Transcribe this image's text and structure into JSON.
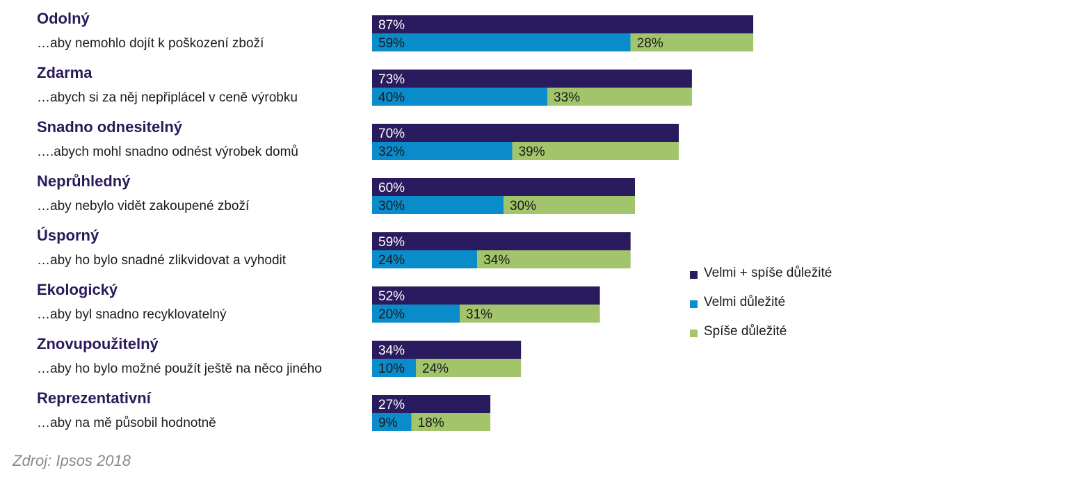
{
  "chart_data": {
    "type": "bar",
    "orientation": "horizontal",
    "categories": [
      {
        "title": "Odolný",
        "subtitle": "…aby nemohlo dojít k poškození zboží"
      },
      {
        "title": "Zdarma",
        "subtitle": "…abych si za něj nepřiplácel v ceně výrobku"
      },
      {
        "title": "Snadno odnesitelný",
        "subtitle": "….abych mohl snadno odnést výrobek domů"
      },
      {
        "title": "Neprůhledný",
        "subtitle": "…aby nebylo vidět zakoupené zboží"
      },
      {
        "title": "Úsporný",
        "subtitle": "…aby ho bylo snadné zlikvidovat a vyhodit"
      },
      {
        "title": "Ekologický",
        "subtitle": "…aby byl snadno recyklovatelný"
      },
      {
        "title": "Znovupoužitelný",
        "subtitle": "…aby ho bylo možné použít ještě na něco jiného"
      },
      {
        "title": "Reprezentativní",
        "subtitle": "…aby na mě působil hodnotně"
      }
    ],
    "series": [
      {
        "name": "Velmi + spíše důležité",
        "color": "#2a1a5e",
        "values": [
          87,
          73,
          70,
          60,
          59,
          52,
          34,
          27
        ],
        "labels": [
          "87%",
          "73%",
          "70%",
          "60%",
          "59%",
          "52%",
          "34%",
          "27%"
        ]
      },
      {
        "name": "Velmi důležité",
        "color": "#0a8ccb",
        "values": [
          59,
          40,
          32,
          30,
          24,
          20,
          10,
          9
        ],
        "labels": [
          "59%",
          "40%",
          "32%",
          "30%",
          "24%",
          "20%",
          "10%",
          "9%"
        ]
      },
      {
        "name": "Spíše důležité",
        "color": "#a2c46b",
        "values": [
          28,
          33,
          39,
          30,
          34,
          31,
          24,
          18
        ],
        "labels": [
          "28%",
          "33%",
          "39%",
          "30%",
          "34%",
          "31%",
          "24%",
          "18%"
        ]
      }
    ],
    "value_unit": "%",
    "xlim": [
      0,
      100
    ],
    "grid": false,
    "legend_position": "right"
  },
  "source": "Zdroj: Ipsos 2018"
}
